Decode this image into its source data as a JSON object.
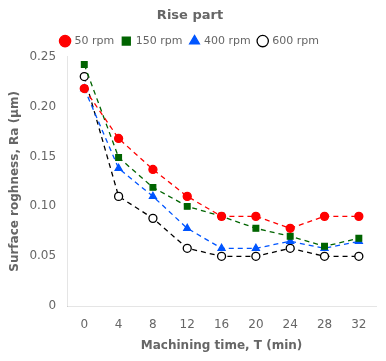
{
  "chart_data": {
    "type": "line",
    "title": "Rise part",
    "xlabel": "Machining time, T (min)",
    "ylabel": "Surface roghness, Ra (μm)",
    "x": [
      0,
      4,
      8,
      12,
      16,
      20,
      24,
      28,
      32
    ],
    "xlim": [
      -2,
      34
    ],
    "xticks": [
      0,
      4,
      8,
      12,
      16,
      20,
      24,
      28,
      32
    ],
    "ylim": [
      0,
      0.25
    ],
    "yticks": [
      0,
      0.05,
      {
        "value": 0.1,
        "label": "0.10"
      },
      0.15,
      {
        "value": 0.2,
        "label": "0.20"
      },
      0.25
    ],
    "grid": false,
    "legend": "top",
    "series": [
      {
        "name": "50 rpm",
        "color": "#ff0000",
        "marker": "circle",
        "line_style": "dashed",
        "values": [
          0.218,
          0.168,
          0.137,
          0.11,
          0.09,
          0.09,
          0.078,
          0.09,
          0.09
        ]
      },
      {
        "name": "150 rpm",
        "color": "#006400",
        "marker": "square",
        "line_style": "dashed",
        "values": [
          0.242,
          0.149,
          0.119,
          0.1,
          0.09,
          0.078,
          0.07,
          0.06,
          0.068
        ]
      },
      {
        "name": "400 rpm",
        "color": "#0055ff",
        "marker": "triangle",
        "line_style": "dashed",
        "values": [
          0.218,
          0.138,
          0.11,
          0.078,
          0.058,
          0.058,
          0.065,
          0.058,
          0.065
        ]
      },
      {
        "name": "600 rpm",
        "color": "#000000",
        "marker": "open-circle",
        "line_style": "dashed",
        "values": [
          0.23,
          0.11,
          0.088,
          0.058,
          0.05,
          0.05,
          0.058,
          0.05,
          0.05
        ]
      }
    ]
  }
}
